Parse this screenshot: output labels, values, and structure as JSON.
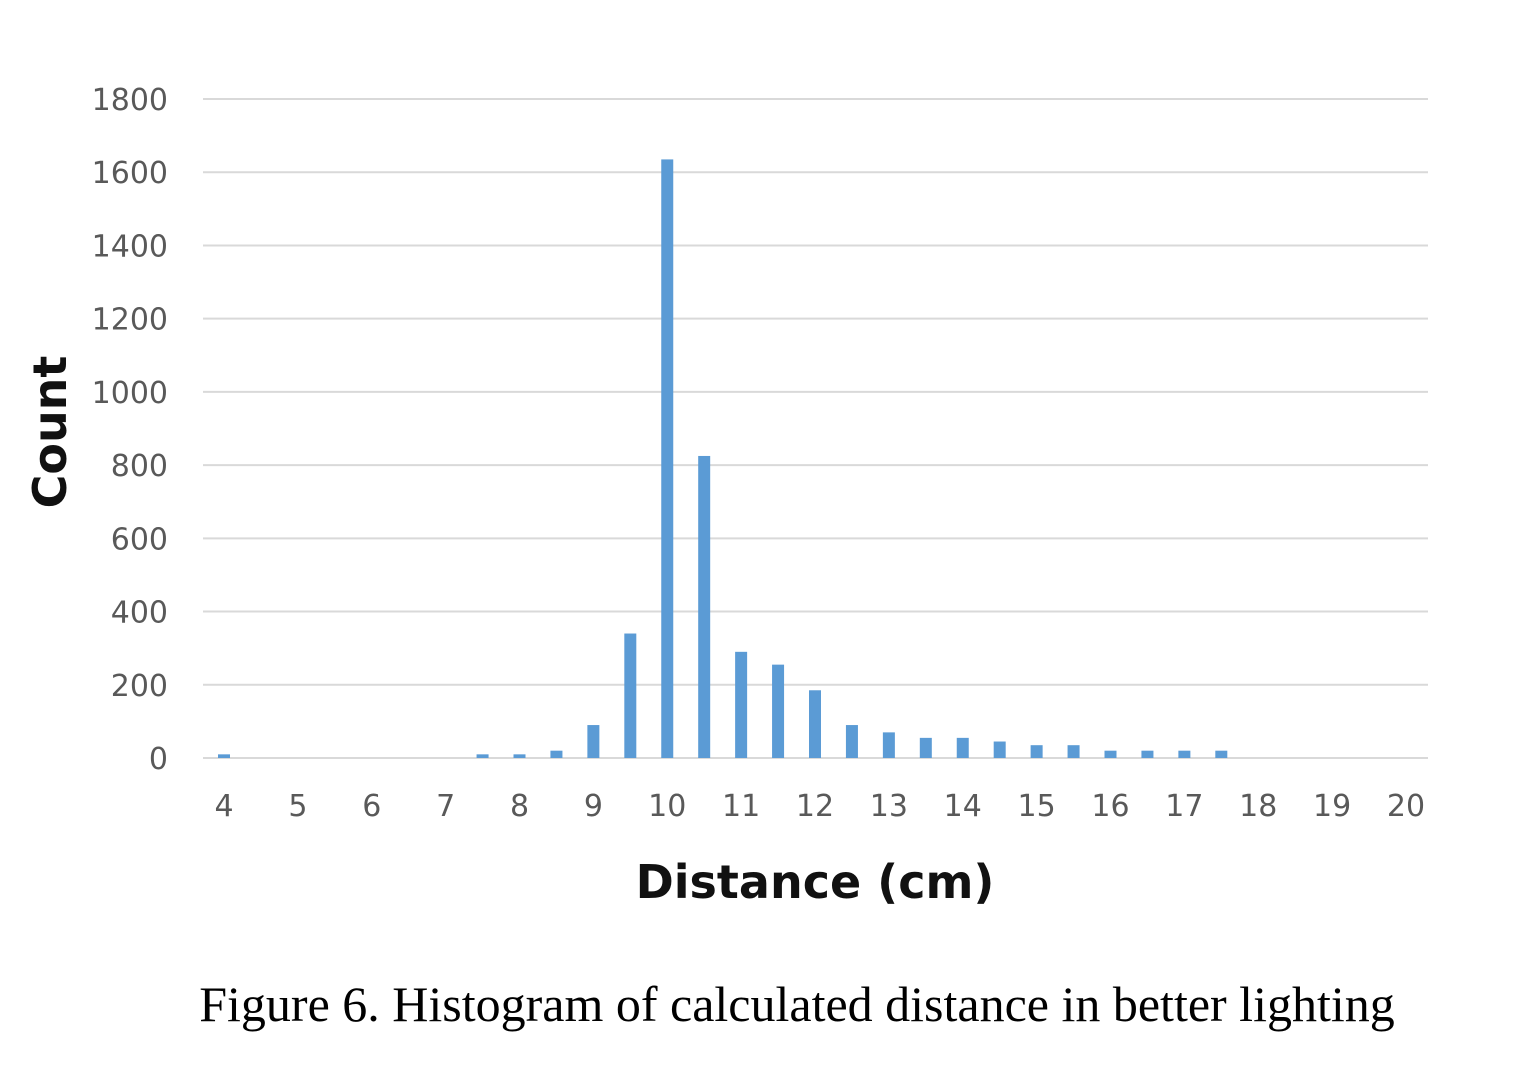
{
  "caption": "Figure 6. Histogram of calculated distance in better lighting",
  "chart_data": {
    "type": "bar",
    "title": "",
    "xlabel": "Distance (cm)",
    "ylabel": "Count",
    "xlim": [
      4,
      20
    ],
    "ylim": [
      0,
      1800
    ],
    "y_ticks": [
      0,
      200,
      400,
      600,
      800,
      1000,
      1200,
      1400,
      1600,
      1800
    ],
    "x_ticks": [
      4,
      5,
      6,
      7,
      8,
      9,
      10,
      11,
      12,
      13,
      14,
      15,
      16,
      17,
      18,
      19,
      20
    ],
    "grid": true,
    "legend": "none",
    "bar_color": "#5b9bd5",
    "x": [
      4,
      4.5,
      5,
      5.5,
      6,
      6.5,
      7,
      7.5,
      8,
      8.5,
      9,
      9.5,
      10,
      10.5,
      11,
      11.5,
      12,
      12.5,
      13,
      13.5,
      14,
      14.5,
      15,
      15.5,
      16,
      16.5,
      17,
      17.5,
      18,
      18.5,
      19,
      19.5,
      20
    ],
    "values": [
      10,
      0,
      0,
      0,
      0,
      0,
      0,
      10,
      10,
      20,
      90,
      340,
      1635,
      825,
      290,
      255,
      185,
      90,
      70,
      55,
      55,
      45,
      35,
      35,
      20,
      20,
      20,
      20,
      0,
      0,
      0,
      0,
      0
    ]
  }
}
